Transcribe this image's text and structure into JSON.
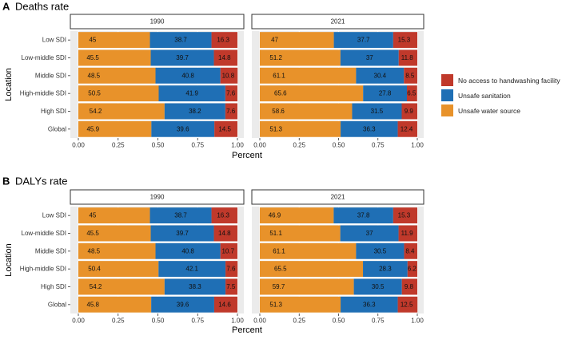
{
  "colors": {
    "handwashing": "#c0392b",
    "sanitation": "#1f6fb5",
    "water": "#e8922a",
    "panel_bg": "#ebebeb",
    "strip_border": "#333333"
  },
  "legend": {
    "items": [
      {
        "key": "handwashing",
        "label": "No access to handwashing facility"
      },
      {
        "key": "sanitation",
        "label": "Unsafe sanitation"
      },
      {
        "key": "water",
        "label": "Unsafe water source"
      }
    ]
  },
  "chart_data": [
    {
      "type": "bar",
      "orientation": "horizontal",
      "stacked": true,
      "panel_letter": "A",
      "title": "Deaths rate",
      "xlabel": "Percent",
      "ylabel": "Location",
      "xlim": [
        0,
        1
      ],
      "xticks": [
        "0.00",
        "0.25",
        "0.50",
        "0.75",
        "1.00"
      ],
      "categories": [
        "Low SDI",
        "Low-middle SDI",
        "Middle SDI",
        "High-middle SDI",
        "High SDI",
        "Global"
      ],
      "series_order": [
        "water",
        "sanitation",
        "handwashing"
      ],
      "facets": [
        {
          "label": "1990",
          "values": {
            "water": [
              45,
              45.5,
              48.5,
              50.5,
              54.2,
              45.9
            ],
            "sanitation": [
              38.7,
              39.7,
              40.8,
              41.9,
              38.2,
              39.6
            ],
            "handwashing": [
              16.3,
              14.8,
              10.8,
              7.6,
              7.6,
              14.5
            ]
          }
        },
        {
          "label": "2021",
          "values": {
            "water": [
              47,
              51.2,
              61.1,
              65.6,
              58.6,
              51.3
            ],
            "sanitation": [
              37.7,
              37,
              30.4,
              27.8,
              31.5,
              36.3
            ],
            "handwashing": [
              15.3,
              11.8,
              8.5,
              6.5,
              9.9,
              12.4
            ]
          }
        }
      ]
    },
    {
      "type": "bar",
      "orientation": "horizontal",
      "stacked": true,
      "panel_letter": "B",
      "title": "DALYs rate",
      "xlabel": "Percent",
      "ylabel": "Location",
      "xlim": [
        0,
        1
      ],
      "xticks": [
        "0.00",
        "0.25",
        "0.50",
        "0.75",
        "1.00"
      ],
      "categories": [
        "Low SDI",
        "Low-middle SDI",
        "Middle SDI",
        "High-middle SDI",
        "High SDI",
        "Global"
      ],
      "series_order": [
        "water",
        "sanitation",
        "handwashing"
      ],
      "facets": [
        {
          "label": "1990",
          "values": {
            "water": [
              45,
              45.5,
              48.5,
              50.4,
              54.2,
              45.8
            ],
            "sanitation": [
              38.7,
              39.7,
              40.8,
              42.1,
              38.3,
              39.6
            ],
            "handwashing": [
              16.3,
              14.8,
              10.7,
              7.6,
              7.5,
              14.6
            ]
          }
        },
        {
          "label": "2021",
          "values": {
            "water": [
              46.9,
              51.1,
              61.1,
              65.5,
              59.7,
              51.3
            ],
            "sanitation": [
              37.8,
              37,
              30.5,
              28.3,
              30.5,
              36.3
            ],
            "handwashing": [
              15.3,
              11.9,
              8.4,
              6.2,
              9.8,
              12.5
            ]
          }
        }
      ]
    }
  ]
}
